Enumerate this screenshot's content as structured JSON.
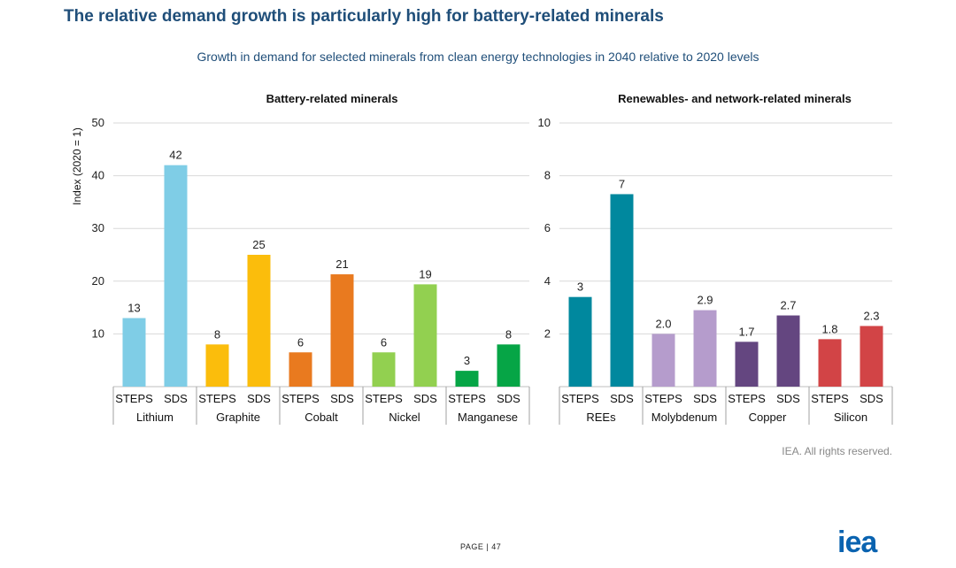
{
  "header": {
    "title": "The relative demand growth is particularly high for battery-related minerals",
    "subtitle": "Growth in demand for selected minerals from clean energy technologies in 2040 relative to 2020 levels"
  },
  "chart_data": [
    {
      "type": "bar",
      "title": "Battery-related minerals",
      "ylabel": "Index (2020 = 1)",
      "ylim": [
        0,
        50
      ],
      "yticks": [
        10,
        20,
        30,
        40,
        50
      ],
      "scenarios": [
        "STEPS",
        "SDS"
      ],
      "groups": [
        {
          "name": "Lithium",
          "values": [
            13,
            42
          ],
          "labels": [
            "13",
            "42"
          ],
          "colors": [
            "#7fcde6",
            "#7fcde6"
          ]
        },
        {
          "name": "Graphite",
          "values": [
            8,
            25
          ],
          "labels": [
            "8",
            "25"
          ],
          "colors": [
            "#fbbd0c",
            "#fbbd0c"
          ]
        },
        {
          "name": "Cobalt",
          "values": [
            6.5,
            21.3
          ],
          "labels": [
            "6",
            "21"
          ],
          "colors": [
            "#e97a1f",
            "#e97a1f"
          ]
        },
        {
          "name": "Nickel",
          "values": [
            6.5,
            19.4
          ],
          "labels": [
            "6",
            "19"
          ],
          "colors": [
            "#92d050",
            "#92d050"
          ]
        },
        {
          "name": "Manganese",
          "values": [
            3,
            8
          ],
          "labels": [
            "3",
            "8"
          ],
          "colors": [
            "#06a546",
            "#06a546"
          ]
        }
      ]
    },
    {
      "type": "bar",
      "title": "Renewables- and network-related minerals",
      "ylabel": "",
      "ylim": [
        0,
        10
      ],
      "yticks": [
        2,
        4,
        6,
        8,
        10
      ],
      "scenarios": [
        "STEPS",
        "SDS"
      ],
      "groups": [
        {
          "name": "REEs",
          "values": [
            3.4,
            7.3
          ],
          "labels": [
            "3",
            "7"
          ],
          "colors": [
            "#00889e",
            "#00889e"
          ]
        },
        {
          "name": "Molybdenum",
          "values": [
            2.0,
            2.9
          ],
          "labels": [
            "2.0",
            "2.9"
          ],
          "colors": [
            "#b59ccc",
            "#b59ccc"
          ]
        },
        {
          "name": "Copper",
          "values": [
            1.7,
            2.7
          ],
          "labels": [
            "1.7",
            "2.7"
          ],
          "colors": [
            "#644680",
            "#644680"
          ]
        },
        {
          "name": "Silicon",
          "values": [
            1.8,
            2.3
          ],
          "labels": [
            "1.8",
            "2.3"
          ],
          "colors": [
            "#d24446",
            "#d24446"
          ]
        }
      ]
    }
  ],
  "footer": {
    "attribution": "IEA. All rights reserved.",
    "page_prefix": "PAGE",
    "page_number": "| 47",
    "logo_text": "iea",
    "logo_color": "#0a63b0"
  }
}
